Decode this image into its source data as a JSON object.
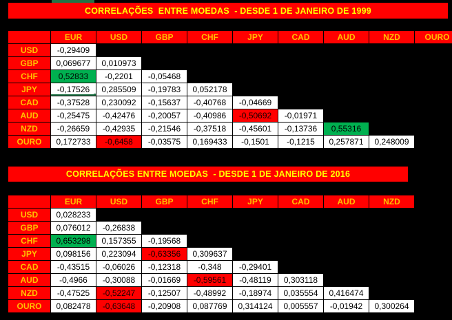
{
  "colors": {
    "background": "#000000",
    "header_bg": "#FF0000",
    "header_text": "#FFC000",
    "title_text": "#FFFF00",
    "cell_bg": "#FFFFFF",
    "highlight_positive": "#00B050",
    "highlight_negative": "#FF0000",
    "selection_green": "#217346"
  },
  "selected_cell": {
    "table": 0,
    "row": "JPY",
    "col": "EUR"
  },
  "tables": [
    {
      "title": "CORRELAÇÕES  ENTRE MOEDAS  - DESDE 1 DE JANEIRO DE 1999",
      "columns": [
        "EUR",
        "USD",
        "GBP",
        "CHF",
        "JPY",
        "CAD",
        "AUD",
        "NZD",
        "OURO"
      ],
      "rows": [
        {
          "label": "USD",
          "cells": [
            {
              "v": "-0,29409"
            }
          ]
        },
        {
          "label": "GBP",
          "cells": [
            {
              "v": "0,069677"
            },
            {
              "v": "0,010973"
            }
          ]
        },
        {
          "label": "CHF",
          "cells": [
            {
              "v": "0,52833",
              "hl": "green"
            },
            {
              "v": "-0,2201"
            },
            {
              "v": "-0,05468"
            }
          ]
        },
        {
          "label": "JPY",
          "cells": [
            {
              "v": "-0,17526",
              "sel": true
            },
            {
              "v": "0,285509"
            },
            {
              "v": "-0,19783"
            },
            {
              "v": "0,052178"
            }
          ]
        },
        {
          "label": "CAD",
          "cells": [
            {
              "v": "-0,37528"
            },
            {
              "v": "0,230092"
            },
            {
              "v": "-0,15637"
            },
            {
              "v": "-0,40768"
            },
            {
              "v": "-0,04669"
            }
          ]
        },
        {
          "label": "AUD",
          "cells": [
            {
              "v": "-0,25475"
            },
            {
              "v": "-0,42476"
            },
            {
              "v": "-0,20057"
            },
            {
              "v": "-0,40986"
            },
            {
              "v": "-0,50692",
              "hl": "red"
            },
            {
              "v": "-0,01971"
            }
          ]
        },
        {
          "label": "NZD",
          "cells": [
            {
              "v": "-0,26659"
            },
            {
              "v": "-0,42935"
            },
            {
              "v": "-0,21546"
            },
            {
              "v": "-0,37518"
            },
            {
              "v": "-0,45601"
            },
            {
              "v": "-0,13736"
            },
            {
              "v": "0,55316",
              "hl": "green"
            }
          ]
        },
        {
          "label": "OURO",
          "cells": [
            {
              "v": "0,172733"
            },
            {
              "v": "-0,6458",
              "hl": "red"
            },
            {
              "v": "-0,03575"
            },
            {
              "v": "0,169433"
            },
            {
              "v": "-0,1501"
            },
            {
              "v": "-0,1215"
            },
            {
              "v": "0,257871"
            },
            {
              "v": "0,248009"
            }
          ]
        }
      ]
    },
    {
      "title": "CORRELAÇÕES ENTRE MOEDAS  - DESDE 1 DE JANEIRO DE 2016",
      "columns": [
        "EUR",
        "USD",
        "GBP",
        "CHF",
        "JPY",
        "CAD",
        "AUD",
        "NZD"
      ],
      "rows": [
        {
          "label": "USD",
          "cells": [
            {
              "v": "0,028233"
            }
          ]
        },
        {
          "label": "GBP",
          "cells": [
            {
              "v": "0,076012"
            },
            {
              "v": "-0,26838"
            }
          ]
        },
        {
          "label": "CHF",
          "cells": [
            {
              "v": "0,653298",
              "hl": "green"
            },
            {
              "v": "0,157355"
            },
            {
              "v": "-0,19568"
            }
          ]
        },
        {
          "label": "JPY",
          "cells": [
            {
              "v": "0,098156"
            },
            {
              "v": "0,223094"
            },
            {
              "v": "-0,63356",
              "hl": "red"
            },
            {
              "v": "0,309637"
            }
          ]
        },
        {
          "label": "CAD",
          "cells": [
            {
              "v": "-0,43515"
            },
            {
              "v": "-0,06026"
            },
            {
              "v": "-0,12318"
            },
            {
              "v": "-0,348"
            },
            {
              "v": "-0,29401"
            }
          ]
        },
        {
          "label": "AUD",
          "cells": [
            {
              "v": "-0,4966"
            },
            {
              "v": "-0,30088"
            },
            {
              "v": "-0,01669"
            },
            {
              "v": "-0,59561",
              "hl": "red"
            },
            {
              "v": "-0,48119"
            },
            {
              "v": "0,303118"
            }
          ]
        },
        {
          "label": "NZD",
          "cells": [
            {
              "v": "-0,47525"
            },
            {
              "v": "-0,52247",
              "hl": "red"
            },
            {
              "v": "-0,12507"
            },
            {
              "v": "-0,48992"
            },
            {
              "v": "-0,18974"
            },
            {
              "v": "0,035554"
            },
            {
              "v": "0,416474"
            }
          ]
        },
        {
          "label": "OURO",
          "cells": [
            {
              "v": "0,082478"
            },
            {
              "v": "-0,63648",
              "hl": "red"
            },
            {
              "v": "-0,20908"
            },
            {
              "v": "0,087769"
            },
            {
              "v": "0,314124"
            },
            {
              "v": "0,005557"
            },
            {
              "v": "-0,01942"
            },
            {
              "v": "0,300264"
            }
          ]
        }
      ]
    }
  ]
}
